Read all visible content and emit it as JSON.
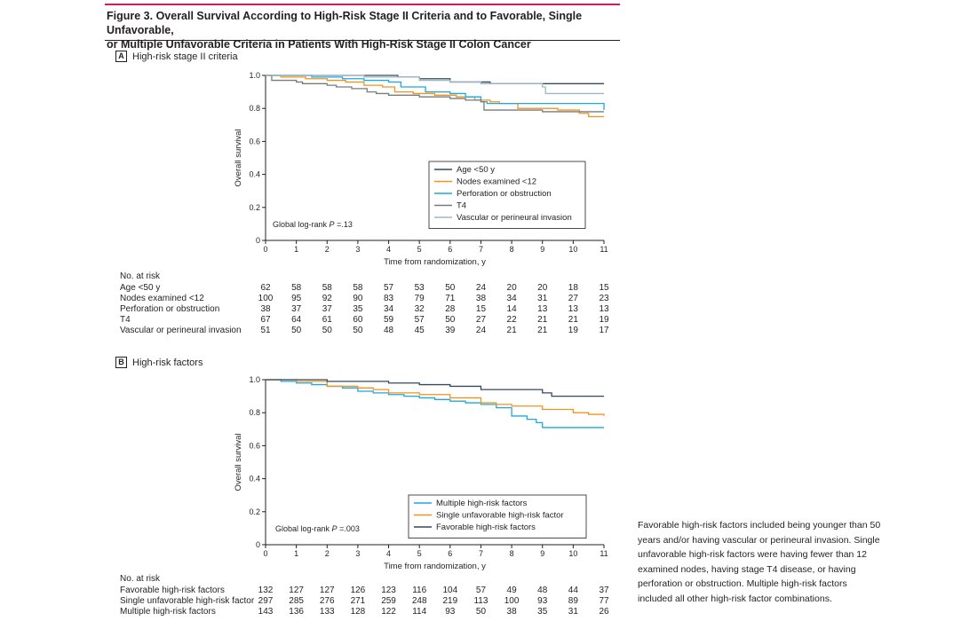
{
  "figure": {
    "title_line1": "Figure 3. Overall Survival According to High-Risk Stage II Criteria and to Favorable, Single Unfavorable,",
    "title_line2": "or Multiple Unfavorable Criteria in Patients With High-Risk Stage II Colon Cancer",
    "accent_color": "#d6195d",
    "footnote": "Favorable high-risk factors included being younger than 50 years and/or having vascular or perineural invasion. Single unfavorable high-risk factors were having fewer than 12 examined nodes, having stage T4 disease, or having perforation or obstruction. Multiple high-risk factors included all other high-risk factor combinations."
  },
  "panel_a": {
    "letter": "A",
    "label": "High-risk stage II criteria",
    "risk_title": "No. at risk"
  },
  "panel_b": {
    "letter": "B",
    "label": "High-risk factors",
    "risk_title": "No. at risk"
  },
  "chart_data": [
    {
      "type": "line",
      "title": "High-risk stage II criteria",
      "xlabel": "Time from randomization, y",
      "ylabel": "Overall survival",
      "xlim": [
        0,
        11
      ],
      "ylim": [
        0,
        1.0
      ],
      "xticks": [
        "0",
        "1",
        "2",
        "3",
        "4",
        "5",
        "6",
        "7",
        "8",
        "9",
        "10",
        "11"
      ],
      "yticks": [
        "0",
        "0.2",
        "0.4",
        "0.6",
        "0.8",
        "1.0"
      ],
      "annotation_prefix": "Global log-rank ",
      "annotation_p": "P",
      "annotation_suffix": " =.13",
      "legend_position": "lower-right",
      "series": [
        {
          "name": "Age <50 y",
          "color": "#34495e",
          "points": [
            [
              0,
              1
            ],
            [
              1,
              1
            ],
            [
              2,
              1
            ],
            [
              3,
              1
            ],
            [
              3.7,
              1
            ],
            [
              4.3,
              0.99
            ],
            [
              5,
              0.98
            ],
            [
              6,
              0.96
            ],
            [
              7,
              0.96
            ],
            [
              7.3,
              0.95
            ],
            [
              9,
              0.95
            ],
            [
              11,
              0.95
            ]
          ]
        },
        {
          "name": "Nodes examined <12",
          "color": "#f0941f",
          "points": [
            [
              0,
              1
            ],
            [
              0.5,
              0.99
            ],
            [
              1.3,
              0.98
            ],
            [
              2,
              0.97
            ],
            [
              2.6,
              0.96
            ],
            [
              3.2,
              0.94
            ],
            [
              3.8,
              0.93
            ],
            [
              4.2,
              0.9
            ],
            [
              4.8,
              0.89
            ],
            [
              5.5,
              0.88
            ],
            [
              6.2,
              0.87
            ],
            [
              6.8,
              0.85
            ],
            [
              7.3,
              0.84
            ],
            [
              7.6,
              0.83
            ],
            [
              8.2,
              0.8
            ],
            [
              9,
              0.8
            ],
            [
              9.5,
              0.79
            ],
            [
              10.2,
              0.77
            ],
            [
              10.5,
              0.75
            ],
            [
              11,
              0.75
            ]
          ]
        },
        {
          "name": "Perforation or obstruction",
          "color": "#1fa7e1",
          "points": [
            [
              0,
              1
            ],
            [
              1.5,
              0.99
            ],
            [
              2.5,
              0.98
            ],
            [
              3.2,
              0.97
            ],
            [
              4,
              0.96
            ],
            [
              4.4,
              0.93
            ],
            [
              5,
              0.93
            ],
            [
              5.2,
              0.9
            ],
            [
              6,
              0.89
            ],
            [
              6.5,
              0.87
            ],
            [
              7,
              0.84
            ],
            [
              7.2,
              0.83
            ],
            [
              9,
              0.83
            ],
            [
              10,
              0.83
            ],
            [
              11,
              0.83
            ],
            [
              11,
              0.79
            ]
          ]
        },
        {
          "name": "T4",
          "color": "#7a7a7a",
          "points": [
            [
              0,
              1
            ],
            [
              0.2,
              0.97
            ],
            [
              1,
              0.96
            ],
            [
              1.2,
              0.95
            ],
            [
              2,
              0.94
            ],
            [
              2.3,
              0.93
            ],
            [
              2.8,
              0.92
            ],
            [
              3.3,
              0.9
            ],
            [
              3.6,
              0.89
            ],
            [
              4,
              0.88
            ],
            [
              4.5,
              0.88
            ],
            [
              5,
              0.87
            ],
            [
              6,
              0.86
            ],
            [
              6.5,
              0.85
            ],
            [
              7,
              0.84
            ],
            [
              7.1,
              0.79
            ],
            [
              8,
              0.79
            ],
            [
              9,
              0.78
            ],
            [
              10,
              0.78
            ],
            [
              11,
              0.78
            ]
          ]
        },
        {
          "name": "Vascular or perineural invasion",
          "color": "#9cb8c8",
          "points": [
            [
              0,
              1
            ],
            [
              1.5,
              1
            ],
            [
              2.5,
              1
            ],
            [
              3.2,
              0.99
            ],
            [
              4,
              0.99
            ],
            [
              5,
              0.97
            ],
            [
              6,
              0.96
            ],
            [
              7,
              0.95
            ],
            [
              8,
              0.95
            ],
            [
              9,
              0.93
            ],
            [
              9.1,
              0.89
            ],
            [
              10,
              0.89
            ],
            [
              11,
              0.89
            ]
          ]
        }
      ],
      "at_risk": [
        {
          "name": "Age <50 y",
          "values": [
            "62",
            "58",
            "58",
            "58",
            "57",
            "53",
            "50",
            "24",
            "20",
            "20",
            "18",
            "15"
          ]
        },
        {
          "name": "Nodes examined <12",
          "values": [
            "100",
            "95",
            "92",
            "90",
            "83",
            "79",
            "71",
            "38",
            "34",
            "31",
            "27",
            "23"
          ]
        },
        {
          "name": "Perforation or obstruction",
          "values": [
            "38",
            "37",
            "37",
            "35",
            "34",
            "32",
            "28",
            "15",
            "14",
            "13",
            "13",
            "13"
          ]
        },
        {
          "name": "T4",
          "values": [
            "67",
            "64",
            "61",
            "60",
            "59",
            "57",
            "50",
            "27",
            "22",
            "21",
            "21",
            "19"
          ]
        },
        {
          "name": "Vascular or perineural invasion",
          "values": [
            "51",
            "50",
            "50",
            "50",
            "48",
            "45",
            "39",
            "24",
            "21",
            "21",
            "19",
            "17"
          ]
        }
      ]
    },
    {
      "type": "line",
      "title": "High-risk factors",
      "xlabel": "Time from randomization, y",
      "ylabel": "Overall survival",
      "xlim": [
        0,
        11
      ],
      "ylim": [
        0,
        1.0
      ],
      "xticks": [
        "0",
        "1",
        "2",
        "3",
        "4",
        "5",
        "6",
        "7",
        "8",
        "9",
        "10",
        "11"
      ],
      "yticks": [
        "0",
        "0.2",
        "0.4",
        "0.6",
        "0.8",
        "1.0"
      ],
      "annotation_prefix": "Global log-rank ",
      "annotation_p": "P",
      "annotation_suffix": " =.003",
      "legend_position": "lower-right",
      "series": [
        {
          "name": "Multiple high-risk factors",
          "color": "#1fa7e1",
          "points": [
            [
              0,
              1
            ],
            [
              0.5,
              0.99
            ],
            [
              1,
              0.98
            ],
            [
              1.5,
              0.97
            ],
            [
              2,
              0.96
            ],
            [
              2.5,
              0.95
            ],
            [
              3,
              0.93
            ],
            [
              3.5,
              0.92
            ],
            [
              4,
              0.91
            ],
            [
              4.5,
              0.9
            ],
            [
              5,
              0.89
            ],
            [
              5.5,
              0.88
            ],
            [
              6,
              0.87
            ],
            [
              6.5,
              0.86
            ],
            [
              7,
              0.85
            ],
            [
              7.5,
              0.83
            ],
            [
              8,
              0.78
            ],
            [
              8.5,
              0.76
            ],
            [
              8.8,
              0.74
            ],
            [
              9,
              0.71
            ],
            [
              10,
              0.71
            ],
            [
              11,
              0.71
            ]
          ]
        },
        {
          "name": "Single unfavorable high-risk factor",
          "color": "#f0941f",
          "points": [
            [
              0,
              1
            ],
            [
              1,
              0.99
            ],
            [
              2,
              0.96
            ],
            [
              3,
              0.95
            ],
            [
              3.5,
              0.94
            ],
            [
              4,
              0.92
            ],
            [
              5,
              0.91
            ],
            [
              6,
              0.89
            ],
            [
              7,
              0.86
            ],
            [
              7.5,
              0.85
            ],
            [
              8,
              0.84
            ],
            [
              9,
              0.82
            ],
            [
              10,
              0.8
            ],
            [
              10.5,
              0.79
            ],
            [
              11,
              0.78
            ]
          ]
        },
        {
          "name": "Favorable high-risk factors",
          "color": "#34495e",
          "points": [
            [
              0,
              1
            ],
            [
              1,
              1
            ],
            [
              2,
              0.99
            ],
            [
              3,
              0.99
            ],
            [
              4,
              0.98
            ],
            [
              5,
              0.97
            ],
            [
              6,
              0.96
            ],
            [
              7,
              0.94
            ],
            [
              8,
              0.94
            ],
            [
              9,
              0.92
            ],
            [
              9.3,
              0.9
            ],
            [
              10,
              0.9
            ],
            [
              11,
              0.9
            ]
          ]
        }
      ],
      "at_risk": [
        {
          "name": "Favorable high-risk factors",
          "values": [
            "132",
            "127",
            "127",
            "126",
            "123",
            "116",
            "104",
            "57",
            "49",
            "48",
            "44",
            "37"
          ]
        },
        {
          "name": "Single unfavorable high-risk factor",
          "values": [
            "297",
            "285",
            "276",
            "271",
            "259",
            "248",
            "219",
            "113",
            "100",
            "93",
            "89",
            "77"
          ]
        },
        {
          "name": "Multiple high-risk factors",
          "values": [
            "143",
            "136",
            "133",
            "128",
            "122",
            "114",
            "93",
            "50",
            "38",
            "35",
            "31",
            "26"
          ]
        }
      ]
    }
  ]
}
